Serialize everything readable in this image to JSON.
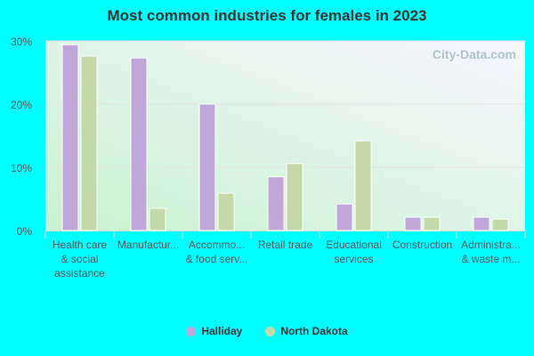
{
  "chart_data": {
    "type": "bar",
    "title": "Most common industries for females in 2023",
    "categories": [
      [
        "Health care",
        "& social",
        "assistance"
      ],
      [
        "Manufactur..."
      ],
      [
        "Accommo...",
        "& food serv..."
      ],
      [
        "Retail trade"
      ],
      [
        "Educational",
        "services"
      ],
      [
        "Construction"
      ],
      [
        "Administra...",
        "& waste m..."
      ]
    ],
    "series": [
      {
        "name": "Halliday",
        "color": "#bfa8d8",
        "values": [
          29.4,
          27.3,
          20.0,
          8.5,
          4.2,
          2.1,
          2.1
        ]
      },
      {
        "name": "North Dakota",
        "color": "#c4d9a8",
        "values": [
          27.6,
          3.5,
          5.9,
          10.6,
          14.2,
          2.1,
          1.8
        ]
      }
    ],
    "yticks": [
      "0%",
      "10%",
      "20%",
      "30%"
    ],
    "ylim": [
      0,
      30
    ],
    "grid": true,
    "legend": "bottom",
    "watermark": "City-Data.com"
  }
}
